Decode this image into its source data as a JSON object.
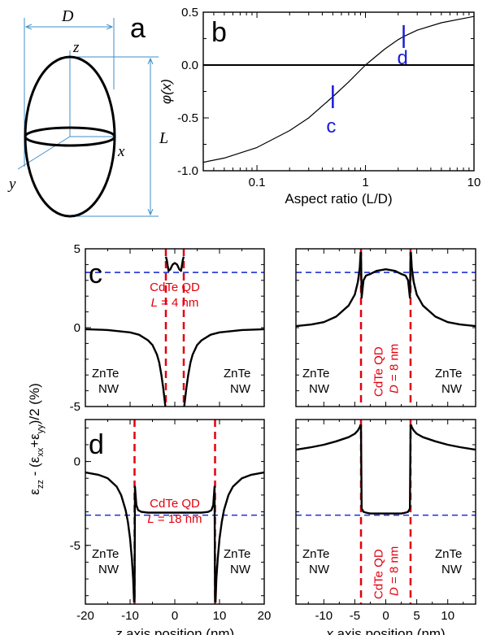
{
  "colors": {
    "axis": "#000000",
    "curve": "#000000",
    "ellipsoid_dim": "#3d8fc8",
    "marker": "#1a1adb",
    "qd_boundary": "#e3000f",
    "mean_line": "#1e2fd6"
  },
  "ellipsoid": {
    "panel_label": "a",
    "dim_D": "D",
    "dim_L": "L",
    "axis_x": "x",
    "axis_y": "y",
    "axis_z": "z"
  },
  "chart_data": [
    {
      "id": "b",
      "type": "line",
      "panel_label": "b",
      "xlabel": "Aspect ratio (L/D)",
      "ylabel": "φ(x)",
      "xscale": "log",
      "xlim": [
        0.032,
        10
      ],
      "ylim": [
        -1.0,
        0.5
      ],
      "xticks": [
        {
          "v": 0.1,
          "label": "0.1"
        },
        {
          "v": 1,
          "label": "1"
        },
        {
          "v": 10,
          "label": "10"
        }
      ],
      "yticks": [
        {
          "v": 0.5,
          "label": "0.5"
        },
        {
          "v": 0.0,
          "label": "0.0"
        },
        {
          "v": -0.5,
          "label": "-0.5"
        },
        {
          "v": -1.0,
          "label": "-1.0"
        }
      ],
      "series": [
        {
          "x": [
            0.032,
            0.05,
            0.1,
            0.2,
            0.3,
            0.5,
            0.7,
            1.0,
            1.5,
            2.0,
            2.25,
            3.0,
            5.0,
            10.0
          ],
          "y": [
            -0.92,
            -0.88,
            -0.78,
            -0.62,
            -0.5,
            -0.3,
            -0.16,
            0.0,
            0.15,
            0.24,
            0.27,
            0.33,
            0.4,
            0.46
          ]
        }
      ],
      "hlines": [
        0.0
      ],
      "markers": [
        {
          "x": 0.5,
          "y": -0.3,
          "label": "c"
        },
        {
          "x": 2.25,
          "y": 0.27,
          "label": "d"
        }
      ]
    },
    {
      "id": "c-z",
      "type": "line",
      "panel_label": "c",
      "xlim": [
        -20,
        20
      ],
      "ylim": [
        -5,
        5
      ],
      "yticks": [
        {
          "v": 5,
          "label": "5"
        },
        {
          "v": 0,
          "label": "0"
        },
        {
          "v": -5,
          "label": "-5"
        }
      ],
      "qd_bounds": [
        -2,
        2
      ],
      "mean": 3.5,
      "qd_label": [
        "CdTe QD",
        "L = 4 nm"
      ],
      "left_label": [
        "ZnTe",
        "NW"
      ],
      "right_label": [
        "ZnTe",
        "NW"
      ],
      "series": [
        {
          "x": [
            -20,
            -15,
            -10,
            -8,
            -6,
            -5,
            -4,
            -3.5,
            -3,
            -2.6,
            -2.3,
            -2.1
          ],
          "y": [
            -0.1,
            -0.15,
            -0.3,
            -0.45,
            -0.8,
            -1.1,
            -1.7,
            -2.2,
            -3.0,
            -3.8,
            -4.5,
            -5.0
          ]
        },
        {
          "x": [
            -2,
            -1.8,
            -1.4,
            -1.0,
            -0.5,
            0,
            0.5,
            1.0,
            1.4,
            1.8,
            2
          ],
          "y": [
            4.5,
            4.3,
            3.6,
            3.7,
            4.0,
            4.1,
            4.0,
            3.7,
            3.6,
            4.3,
            4.5
          ]
        },
        {
          "x": [
            2.1,
            2.3,
            2.6,
            3,
            3.5,
            4,
            5,
            6,
            8,
            10,
            15,
            20
          ],
          "y": [
            -5.0,
            -4.5,
            -3.8,
            -3.0,
            -2.2,
            -1.7,
            -1.1,
            -0.8,
            -0.45,
            -0.3,
            -0.15,
            -0.1
          ]
        }
      ]
    },
    {
      "id": "c-x",
      "type": "line",
      "xlim": [
        -14.5,
        14.5
      ],
      "ylim": [
        -5,
        5
      ],
      "qd_bounds": [
        -4,
        4
      ],
      "mean": 3.5,
      "qd_label": [
        "CdTe QD",
        "D = 8 nm"
      ],
      "left_label": [
        "ZnTe",
        "NW"
      ],
      "right_label": [
        "ZnTe",
        "NW"
      ],
      "series": [
        {
          "x": [
            -14.5,
            -12,
            -10,
            -8,
            -6,
            -5,
            -4.5,
            -4.2,
            -4.05
          ],
          "y": [
            0.1,
            0.2,
            0.35,
            0.7,
            1.4,
            2.1,
            2.9,
            3.8,
            4.8
          ]
        },
        {
          "x": [
            -4,
            -3.9,
            -3.6,
            -3.2,
            -2.5,
            -1.5,
            0,
            1.5,
            2.5,
            3.2,
            3.6,
            3.9,
            4
          ],
          "y": [
            4.8,
            1.9,
            3.0,
            3.3,
            3.4,
            3.6,
            3.7,
            3.6,
            3.4,
            3.3,
            3.0,
            1.9,
            4.8
          ]
        },
        {
          "x": [
            4.05,
            4.2,
            4.5,
            5,
            6,
            8,
            10,
            12,
            14.5
          ],
          "y": [
            4.8,
            3.8,
            2.9,
            2.1,
            1.4,
            0.7,
            0.35,
            0.2,
            0.1
          ]
        }
      ]
    },
    {
      "id": "d-z",
      "type": "line",
      "panel_label": "d",
      "xlabel": "z axis position (nm)",
      "xlim": [
        -20,
        20
      ],
      "ylim": [
        -8.5,
        2.5
      ],
      "xticks": [
        {
          "v": -20,
          "label": "-20"
        },
        {
          "v": -10,
          "label": "-10"
        },
        {
          "v": 0,
          "label": "0"
        },
        {
          "v": 10,
          "label": "10"
        },
        {
          "v": 20,
          "label": "20"
        }
      ],
      "yticks": [
        {
          "v": 0,
          "label": "0"
        },
        {
          "v": -5,
          "label": "-5"
        }
      ],
      "qd_bounds": [
        -9,
        9
      ],
      "mean": -3.2,
      "qd_label": [
        "CdTe QD",
        "L = 18 nm"
      ],
      "left_label": [
        "ZnTe",
        "NW"
      ],
      "right_label": [
        "ZnTe",
        "NW"
      ],
      "series": [
        {
          "x": [
            -20,
            -17,
            -15,
            -13,
            -12,
            -11,
            -10.5,
            -10,
            -9.6,
            -9.3,
            -9.1
          ],
          "y": [
            -0.65,
            -0.8,
            -1.0,
            -1.5,
            -2.0,
            -2.9,
            -3.6,
            -4.6,
            -5.8,
            -7.0,
            -8.4
          ]
        },
        {
          "x": [
            -9,
            -8.9,
            -8.6,
            -8.2,
            -7.5,
            -6,
            -3,
            0,
            3,
            6,
            7.5,
            8.2,
            8.6,
            8.9,
            9
          ],
          "y": [
            -8.4,
            -1.5,
            -2.6,
            -2.9,
            -3.0,
            -3.05,
            -3.05,
            -3.05,
            -3.05,
            -3.05,
            -3.0,
            -2.9,
            -2.6,
            -1.5,
            -8.4
          ]
        },
        {
          "x": [
            9.1,
            9.3,
            9.6,
            10,
            10.5,
            11,
            12,
            13,
            15,
            17,
            20
          ],
          "y": [
            -8.4,
            -7.0,
            -5.8,
            -4.6,
            -3.6,
            -2.9,
            -2.0,
            -1.5,
            -1.0,
            -0.8,
            -0.65
          ]
        }
      ]
    },
    {
      "id": "d-x",
      "type": "line",
      "xlabel": "x axis position (nm)",
      "xlim": [
        -14.5,
        14.5
      ],
      "ylim": [
        -8.5,
        2.5
      ],
      "xticks": [
        {
          "v": -10,
          "label": "-10"
        },
        {
          "v": -5,
          "label": "-5"
        },
        {
          "v": 0,
          "label": "0"
        },
        {
          "v": 5,
          "label": "5"
        },
        {
          "v": 10,
          "label": "10"
        }
      ],
      "qd_bounds": [
        -4,
        4
      ],
      "mean": -3.2,
      "qd_label": [
        "CdTe QD",
        "D = 8 nm"
      ],
      "left_label": [
        "ZnTe",
        "NW"
      ],
      "right_label": [
        "ZnTe",
        "NW"
      ],
      "series": [
        {
          "x": [
            -14.5,
            -12,
            -10,
            -8,
            -6,
            -5,
            -4.5,
            -4.2,
            -4.05
          ],
          "y": [
            0.7,
            0.85,
            1.0,
            1.2,
            1.45,
            1.65,
            1.85,
            2.05,
            2.2
          ]
        },
        {
          "x": [
            -4,
            -3.9,
            -3.6,
            -3.2,
            -2.5,
            -1,
            0,
            1,
            2.5,
            3.2,
            3.6,
            3.9,
            4
          ],
          "y": [
            2.2,
            -2.8,
            -3.0,
            -3.05,
            -3.1,
            -3.1,
            -3.1,
            -3.1,
            -3.1,
            -3.05,
            -3.0,
            -2.8,
            2.2
          ]
        },
        {
          "x": [
            4.05,
            4.2,
            4.5,
            5,
            6,
            8,
            10,
            12,
            14.5
          ],
          "y": [
            2.2,
            2.05,
            1.85,
            1.65,
            1.45,
            1.2,
            1.0,
            0.85,
            0.7
          ]
        }
      ]
    }
  ],
  "shared_ylabel": {
    "base": "ε",
    "zz": "zz",
    "mid": " - (ε",
    "xx": "xx",
    "plus": "+ε",
    "yy": "yy",
    "tail": ")/2 (%)"
  }
}
